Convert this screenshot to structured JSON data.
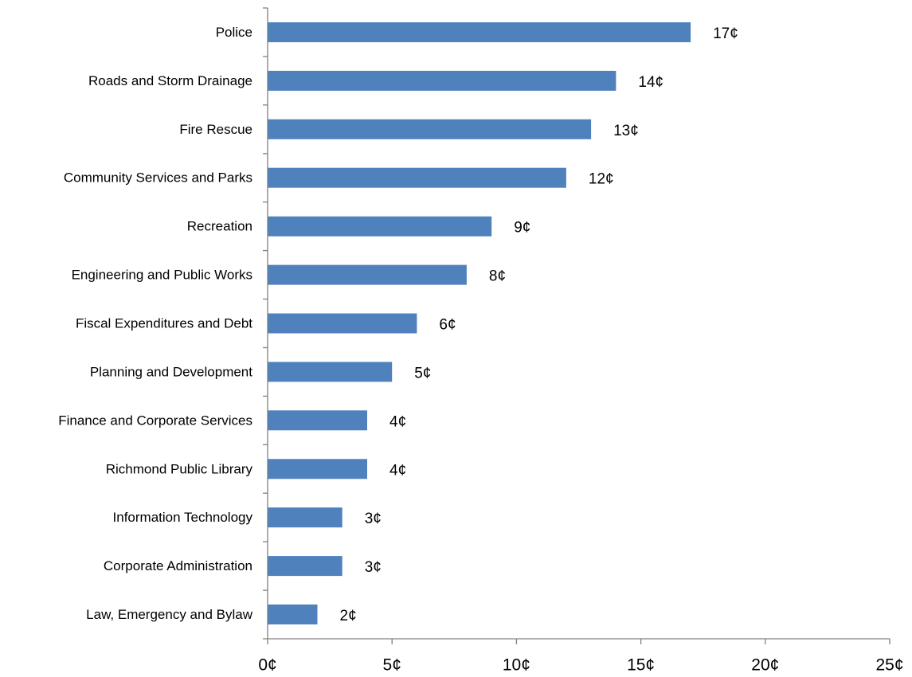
{
  "chart_data": {
    "type": "bar",
    "orientation": "horizontal",
    "categories": [
      "Police",
      "Roads and Storm Drainage",
      "Fire Rescue",
      "Community Services and Parks",
      "Recreation",
      "Engineering and Public Works",
      "Fiscal Expenditures and Debt",
      "Planning and Development",
      "Finance and Corporate Services",
      "Richmond Public Library",
      "Information Technology",
      "Corporate Administration",
      "Law, Emergency and Bylaw"
    ],
    "values": [
      17,
      14,
      13,
      12,
      9,
      8,
      6,
      5,
      4,
      4,
      3,
      3,
      2
    ],
    "data_labels": [
      "17¢",
      "14¢",
      "13¢",
      "12¢",
      "9¢",
      "8¢",
      "6¢",
      "5¢",
      "4¢",
      "4¢",
      "3¢",
      "3¢",
      "2¢"
    ],
    "xlim": [
      0,
      25
    ],
    "x_ticks": [
      0,
      5,
      10,
      15,
      20,
      25
    ],
    "x_tick_labels": [
      "0¢",
      "5¢",
      "10¢",
      "15¢",
      "20¢",
      "25¢"
    ],
    "grid": false,
    "legend": "none",
    "title": "",
    "xlabel": "",
    "ylabel": "",
    "colors": {
      "bar": "#4F81BD",
      "axis": "#808080",
      "text": "#000000"
    }
  }
}
